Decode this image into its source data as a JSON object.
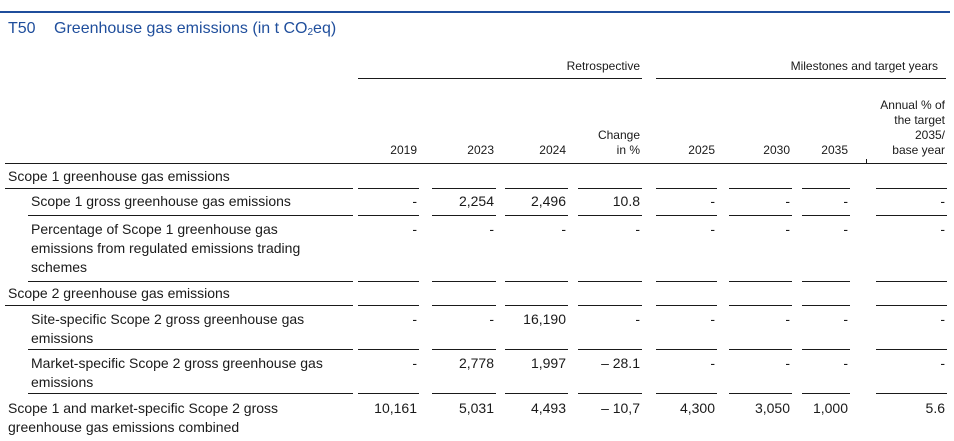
{
  "title": {
    "code": "T50",
    "text_before": "Greenhouse gas emissions (in t CO",
    "subscript": "2",
    "text_after": "eq)"
  },
  "column_groups": {
    "retrospective": "Retrospective",
    "milestones": "Milestones and target years"
  },
  "columns": [
    "2019",
    "2023",
    "2024",
    "Change\nin %",
    "2025",
    "2030",
    "2035",
    "Annual % of\nthe target\n2035/\nbase year"
  ],
  "rows": [
    {
      "label": "Scope 1 greenhouse gas emissions",
      "type": "section",
      "values": [
        "",
        "",
        "",
        "",
        "",
        "",
        "",
        ""
      ]
    },
    {
      "label": "Scope 1 gross greenhouse gas emissions",
      "type": "item",
      "values": [
        "-",
        "2,254",
        "2,496",
        "10.8",
        "-",
        "-",
        "-",
        "-"
      ]
    },
    {
      "label": "Percentage of Scope 1 greenhouse gas\nemissions from regulated emissions trading\nschemes",
      "type": "item",
      "values": [
        "-",
        "-",
        "-",
        "-",
        "-",
        "-",
        "-",
        "-"
      ]
    },
    {
      "label": "Scope 2 greenhouse gas emissions",
      "type": "section",
      "values": [
        "",
        "",
        "",
        "",
        "",
        "",
        "",
        ""
      ]
    },
    {
      "label": "Site-specific Scope 2 gross greenhouse gas\nemissions",
      "type": "item",
      "values": [
        "-",
        "-",
        "16,190",
        "-",
        "-",
        "-",
        "-",
        "-"
      ]
    },
    {
      "label": "Market-specific Scope 2 gross greenhouse gas\nemissions",
      "type": "item",
      "values": [
        "-",
        "2,778",
        "1,997",
        "– 28.1",
        "-",
        "-",
        "-",
        "-"
      ]
    },
    {
      "label": "Scope 1 and market-specific Scope 2 gross\ngreenhouse gas emissions combined",
      "type": "total",
      "values": [
        "10,161",
        "5,031",
        "4,493",
        "– 10,7",
        "4,300",
        "3,050",
        "1,000",
        "5.6"
      ]
    }
  ]
}
